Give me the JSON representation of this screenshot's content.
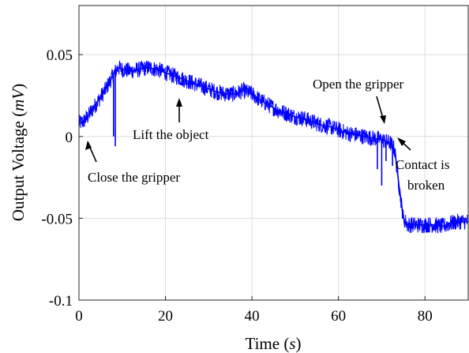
{
  "chart_data": {
    "type": "line",
    "xlabel": "Time (s)",
    "ylabel": "Output Voltage (mV)",
    "xlim": [
      0,
      90
    ],
    "ylim": [
      -0.1,
      0.08
    ],
    "x_ticks": [
      "0",
      "20",
      "40",
      "60",
      "80"
    ],
    "y_ticks": [
      "0.05",
      "0",
      "-0.05",
      "-0.1"
    ],
    "x_tick_values": [
      0,
      20,
      40,
      60,
      80
    ],
    "y_tick_values": [
      0.05,
      0,
      -0.05,
      -0.1
    ],
    "grid": true,
    "series_color": "#0000ff",
    "series": [
      {
        "x": [
          0,
          1,
          2,
          3,
          4,
          5,
          6,
          7,
          8,
          9,
          10,
          12,
          14,
          16,
          18,
          20,
          22,
          24,
          26,
          28,
          30,
          32,
          34,
          36,
          38,
          40,
          42,
          44,
          46,
          48,
          50,
          52,
          54,
          56,
          58,
          60,
          62,
          64,
          66,
          68,
          70,
          71,
          72,
          73,
          74,
          75,
          76,
          78,
          80,
          82,
          84,
          86,
          88,
          90
        ],
        "y": [
          0.008,
          0.009,
          0.012,
          0.016,
          0.02,
          0.024,
          0.028,
          0.033,
          0.038,
          0.042,
          0.041,
          0.04,
          0.041,
          0.042,
          0.041,
          0.039,
          0.037,
          0.035,
          0.033,
          0.031,
          0.029,
          0.027,
          0.026,
          0.026,
          0.028,
          0.026,
          0.022,
          0.019,
          0.016,
          0.014,
          0.012,
          0.011,
          0.009,
          0.007,
          0.006,
          0.004,
          0.002,
          0.001,
          0.0,
          -0.001,
          -0.002,
          -0.003,
          -0.004,
          -0.008,
          -0.03,
          -0.05,
          -0.054,
          -0.054,
          -0.054,
          -0.054,
          -0.055,
          -0.053,
          -0.052,
          -0.052
        ]
      }
    ],
    "spikes": [
      {
        "x": 8.0,
        "y": 0.0
      },
      {
        "x": 8.4,
        "y": -0.006
      },
      {
        "x": 69.0,
        "y": -0.02
      },
      {
        "x": 70.0,
        "y": -0.03
      },
      {
        "x": 71.0,
        "y": -0.015
      },
      {
        "x": 72.5,
        "y": -0.018
      }
    ],
    "annotations": [
      {
        "text": "Close the gripper",
        "x": 1.5,
        "y": -0.002
      },
      {
        "text": "Lift the object",
        "x": 23,
        "y": 0.034
      },
      {
        "text": "Open the gripper",
        "x": 71,
        "y": 0.012
      },
      {
        "text": "Contact is",
        "x": 73,
        "y": -0.006
      },
      {
        "text": "broken",
        "x": 73,
        "y": -0.006
      }
    ]
  }
}
